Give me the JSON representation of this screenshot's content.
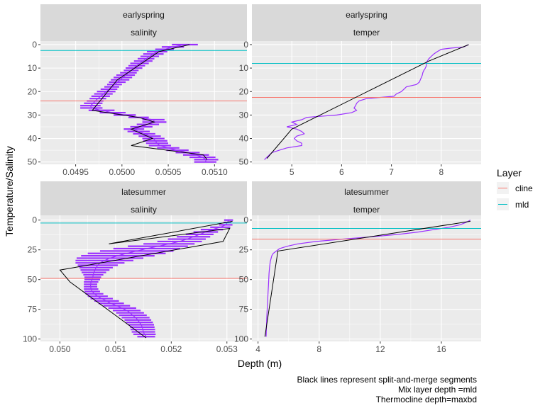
{
  "chart_data": {
    "type": "line",
    "xlabel": "Depth (m)",
    "ylabel": "Temperature/Salinity",
    "legend": {
      "title": "Layer",
      "placement": "right",
      "entries": [
        {
          "name": "cline",
          "color": "#F8766D"
        },
        {
          "name": "mld",
          "color": "#00BFC4"
        }
      ]
    },
    "caption": [
      "Black lines represent split-and-merge segments",
      "Mix layer depth =mld",
      "Thermocline depth=maxbd"
    ],
    "colors": {
      "profile": "#9B30FF",
      "segments": "#000000",
      "panel_background": "#EBEBEB",
      "grid": "#FFFFFF",
      "strip": "#D9D9D9"
    },
    "panels": [
      {
        "season": "earlyspring",
        "variable": "salinity",
        "xlim": [
          0.04912,
          0.05135
        ],
        "ylim": [
          51,
          -1.5
        ],
        "x_ticks": [
          0.0495,
          0.05,
          0.0505,
          0.051
        ],
        "x_tick_labels": [
          "0.0495",
          "0.0500",
          "0.0505",
          "0.0510"
        ],
        "y_ticks": [
          0,
          10,
          20,
          30,
          40,
          50
        ],
        "y_tick_labels": [
          "0",
          "10",
          "20",
          "30",
          "40",
          "50"
        ],
        "mld": 2.5,
        "cline": 24,
        "profile": {
          "depth": [
            0,
            1,
            2,
            3,
            4,
            5,
            6,
            7,
            8,
            9,
            10,
            11,
            12,
            13,
            14,
            15,
            16,
            17,
            18,
            19,
            20,
            21,
            22,
            23,
            24,
            25,
            26,
            27,
            28,
            29,
            30,
            31,
            32,
            33,
            34,
            35,
            36,
            37,
            38,
            39,
            40,
            41,
            42,
            43,
            44,
            45,
            46,
            47,
            48,
            49,
            50
          ],
          "value": [
            0.05068,
            0.05055,
            0.05046,
            0.05038,
            0.05034,
            0.0503,
            0.05026,
            0.05023,
            0.05019,
            0.05016,
            0.05013,
            0.0501,
            0.05007,
            0.05004,
            0.05001,
            0.04998,
            0.04995,
            0.04992,
            0.04989,
            0.04986,
            0.04983,
            0.0498,
            0.04977,
            0.04974,
            0.04971,
            0.04969,
            0.04966,
            0.04967,
            0.04978,
            0.0499,
            0.05003,
            0.05018,
            0.05034,
            0.05035,
            0.05028,
            0.05021,
            0.05013,
            0.05018,
            0.05024,
            0.0503,
            0.05034,
            0.05036,
            0.05038,
            0.05041,
            0.0505,
            0.0506,
            0.05071,
            0.0508,
            0.05087,
            0.05091,
            0.0509
          ],
          "spread": [
            0.00014,
            0.00012,
            0.0001,
            0.00011,
            0.00011,
            0.0001,
            9e-05,
            0.0001,
            0.0001,
            9e-05,
            9e-05,
            8e-05,
            9e-05,
            0.0001,
            0.0001,
            0.0001,
            9e-05,
            8e-05,
            8e-05,
            9e-05,
            0.0001,
            0.0001,
            0.0001,
            9e-05,
            9e-05,
            0.0001,
            0.00011,
            0.00012,
            0.00014,
            0.00014,
            0.00012,
            0.00011,
            0.00012,
            0.00013,
            0.00012,
            0.00012,
            0.00011,
            0.00012,
            0.00012,
            0.00012,
            0.00012,
            0.00013,
            0.00012,
            0.00012,
            0.00012,
            0.00012,
            0.00013,
            0.00014,
            0.00014,
            0.00013,
            0.00012
          ]
        },
        "segments": [
          [
            0.05073,
            0
          ],
          [
            0.0504,
            3
          ],
          [
            0.04995,
            15
          ],
          [
            0.04968,
            28
          ],
          [
            0.05018,
            31
          ],
          [
            0.05035,
            33
          ],
          [
            0.0501,
            36
          ],
          [
            0.05033,
            40
          ],
          [
            0.0501,
            43
          ],
          [
            0.05088,
            47
          ],
          [
            0.05092,
            49
          ]
        ]
      },
      {
        "season": "earlyspring",
        "variable": "temper",
        "xlim": [
          4.2,
          8.8
        ],
        "ylim": [
          51,
          -1.5
        ],
        "x_ticks": [
          5,
          6,
          7,
          8
        ],
        "x_tick_labels": [
          "5",
          "6",
          "7",
          "8"
        ],
        "y_ticks": [
          0,
          10,
          20,
          30,
          40,
          50
        ],
        "y_tick_labels": [
          "0",
          "10",
          "20",
          "30",
          "40",
          "50"
        ],
        "mld": 8,
        "cline": 22.5,
        "profile": {
          "depth": [
            0,
            1,
            1.5,
            2,
            3,
            4,
            5,
            6,
            7,
            8,
            9,
            10,
            11,
            12,
            13,
            14,
            15,
            16,
            17,
            18,
            19,
            20,
            21,
            22,
            23,
            24,
            25,
            26,
            27,
            28,
            29,
            30,
            31,
            32,
            33,
            34,
            35,
            36,
            37,
            38,
            39,
            40,
            41,
            42,
            43,
            44,
            45,
            46,
            47,
            48,
            49
          ],
          "value": [
            8.55,
            8.45,
            8.2,
            8.0,
            7.92,
            7.85,
            7.8,
            7.75,
            7.72,
            7.7,
            7.7,
            7.68,
            7.65,
            7.63,
            7.62,
            7.6,
            7.58,
            7.56,
            7.5,
            7.3,
            7.25,
            7.2,
            7.1,
            7.05,
            6.5,
            6.35,
            6.3,
            6.28,
            6.25,
            6.3,
            6.2,
            5.9,
            5.3,
            5.2,
            5.0,
            5.1,
            4.9,
            5.1,
            5.2,
            5.25,
            5.1,
            5.05,
            5.1,
            5.2,
            5.2,
            4.9,
            4.75,
            4.6,
            4.55,
            4.5,
            4.45
          ],
          "spread": [
            0,
            0,
            0,
            0,
            0,
            0,
            0,
            0,
            0,
            0,
            0,
            0,
            0,
            0,
            0,
            0,
            0,
            0,
            0,
            0,
            0,
            0,
            0,
            0,
            0,
            0,
            0,
            0,
            0,
            0,
            0,
            0,
            0,
            0,
            0,
            0,
            0,
            0,
            0,
            0,
            0,
            0,
            0,
            0,
            0,
            0,
            0,
            0,
            0,
            0,
            0
          ]
        },
        "segments": [
          [
            8.55,
            0
          ],
          [
            7.75,
            7
          ],
          [
            5.0,
            36
          ],
          [
            4.5,
            48.5
          ]
        ]
      },
      {
        "season": "latesummer",
        "variable": "salinity",
        "xlim": [
          0.04965,
          0.05336
        ],
        "ylim": [
          102,
          -4
        ],
        "x_ticks": [
          0.05,
          0.051,
          0.052,
          0.053
        ],
        "x_tick_labels": [
          "0.050",
          "0.051",
          "0.052",
          "0.053"
        ],
        "y_ticks": [
          0,
          25,
          50,
          75,
          100
        ],
        "y_tick_labels": [
          "0",
          "25",
          "50",
          "75",
          "100"
        ],
        "mld": 2.5,
        "cline": 49,
        "profile": {
          "depth": [
            0,
            2,
            4,
            6,
            8,
            10,
            12,
            14,
            16,
            18,
            20,
            22,
            24,
            26,
            28,
            30,
            32,
            34,
            36,
            38,
            40,
            42,
            44,
            46,
            48,
            50,
            52,
            54,
            56,
            58,
            60,
            62,
            64,
            66,
            68,
            70,
            72,
            74,
            76,
            78,
            80,
            82,
            84,
            86,
            88,
            90,
            92,
            94,
            96,
            98
          ],
          "value": [
            0.05303,
            0.05301,
            0.05298,
            0.05288,
            0.05273,
            0.05262,
            0.05251,
            0.0524,
            0.05228,
            0.05215,
            0.05196,
            0.05176,
            0.05156,
            0.05138,
            0.0512,
            0.05104,
            0.0509,
            0.0508,
            0.05072,
            0.05068,
            0.05065,
            0.05063,
            0.05061,
            0.0506,
            0.05059,
            0.05058,
            0.05056,
            0.05055,
            0.05055,
            0.05056,
            0.05058,
            0.05062,
            0.05068,
            0.05075,
            0.05084,
            0.05092,
            0.05102,
            0.05112,
            0.0512,
            0.05126,
            0.05131,
            0.05136,
            0.0514,
            0.05143,
            0.05146,
            0.05148,
            0.05149,
            0.0515,
            0.05152,
            0.05155
          ],
          "spread": [
            8e-05,
            7e-05,
            0.00012,
            0.00018,
            0.0002,
            0.00022,
            0.00025,
            0.0003,
            0.00034,
            0.0004,
            0.00046,
            0.00054,
            0.0006,
            0.00066,
            0.0007,
            0.00066,
            0.0006,
            0.00052,
            0.00044,
            0.00036,
            0.0003,
            0.00026,
            0.00022,
            0.00018,
            0.00015,
            0.00014,
            0.00013,
            0.00012,
            0.00012,
            0.00013,
            0.00014,
            0.00016,
            0.00018,
            0.0002,
            0.00022,
            0.00023,
            0.00024,
            0.00025,
            0.00025,
            0.00025,
            0.00025,
            0.00025,
            0.00024,
            0.00024,
            0.00023,
            0.00022,
            0.00022,
            0.00021,
            0.0002,
            0.00016
          ]
        },
        "segments": [
          [
            0.0531,
            1
          ],
          [
            0.05088,
            20
          ],
          [
            0.05305,
            7
          ],
          [
            0.05293,
            18
          ],
          [
            0.05,
            42
          ],
          [
            0.05018,
            52
          ],
          [
            0.05155,
            99
          ]
        ]
      },
      {
        "season": "latesummer",
        "variable": "temper",
        "xlim": [
          3.6,
          18.6
        ],
        "ylim": [
          102,
          -4
        ],
        "x_ticks": [
          4,
          8,
          12,
          16
        ],
        "x_tick_labels": [
          "4",
          "8",
          "12",
          "16"
        ],
        "y_ticks": [
          0,
          25,
          50,
          75,
          100
        ],
        "y_tick_labels": [
          "0",
          "25",
          "50",
          "75",
          "100"
        ],
        "mld": 7,
        "cline": 16,
        "profile": {
          "depth": [
            0,
            2,
            4,
            6,
            8,
            10,
            12,
            14,
            16,
            18,
            20,
            22,
            24,
            26,
            28,
            30,
            35,
            40,
            45,
            50,
            55,
            60,
            65,
            70,
            75,
            80,
            85,
            90,
            95,
            98
          ],
          "value": [
            17.9,
            17.6,
            17.2,
            16.5,
            15.5,
            14.5,
            13.2,
            11.5,
            9.5,
            7.8,
            6.6,
            5.9,
            5.4,
            5.2,
            5.0,
            4.9,
            4.8,
            4.75,
            4.72,
            4.7,
            4.68,
            4.66,
            4.64,
            4.62,
            4.6,
            4.58,
            4.56,
            4.55,
            4.54,
            4.53
          ],
          "spread": [
            0,
            0,
            0,
            0,
            0,
            0,
            0,
            0,
            0,
            0,
            0,
            0,
            0,
            0,
            0,
            0,
            0,
            0,
            0,
            0,
            0,
            0,
            0,
            0,
            0,
            0,
            0,
            0,
            0,
            0
          ]
        },
        "segments": [
          [
            17.9,
            1
          ],
          [
            5.3,
            26
          ],
          [
            4.45,
            98
          ]
        ]
      }
    ]
  }
}
